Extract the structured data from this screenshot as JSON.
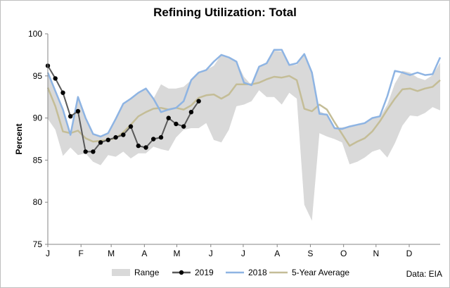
{
  "chart_data": {
    "type": "line",
    "title": "Refining Utilization: Total",
    "ylabel": "Percent",
    "xlabel": "",
    "ylim": [
      75,
      100
    ],
    "yticks": [
      75,
      80,
      85,
      90,
      95,
      100
    ],
    "x_range": [
      1,
      53
    ],
    "x_ticks": [
      {
        "label": "J",
        "week": 1
      },
      {
        "label": "F",
        "week": 5.4
      },
      {
        "label": "M",
        "week": 9.4
      },
      {
        "label": "A",
        "week": 13.8
      },
      {
        "label": "M",
        "week": 18.1
      },
      {
        "label": "J",
        "week": 22.6
      },
      {
        "label": "J",
        "week": 26.9
      },
      {
        "label": "A",
        "week": 31.4
      },
      {
        "label": "S",
        "week": 35.8
      },
      {
        "label": "O",
        "week": 40.2
      },
      {
        "label": "N",
        "week": 44.5
      },
      {
        "label": "D",
        "week": 48.9
      }
    ],
    "grid": false,
    "legend_position": "bottom",
    "range": {
      "name": "Range",
      "color": "#d9d9d9",
      "weeks": [
        1,
        2,
        3,
        4,
        5,
        6,
        7,
        8,
        9,
        10,
        11,
        12,
        13,
        14,
        15,
        16,
        17,
        18,
        19,
        20,
        21,
        22,
        23,
        24,
        25,
        26,
        27,
        28,
        29,
        30,
        31,
        32,
        33,
        34,
        35,
        36,
        37,
        38,
        39,
        40,
        41,
        42,
        43,
        44,
        45,
        46,
        47,
        48,
        49,
        50,
        51,
        52,
        53
      ],
      "lower": [
        89.9,
        88.6,
        85.5,
        86.5,
        85.6,
        85.8,
        84.8,
        84.4,
        85.6,
        85.4,
        86.0,
        85.2,
        85.8,
        85.8,
        86.6,
        86.3,
        86.1,
        87.7,
        88.6,
        88.8,
        88.8,
        89.4,
        87.4,
        87.1,
        88.6,
        91.4,
        91.6,
        92.0,
        93.3,
        92.5,
        92.5,
        91.6,
        93.0,
        92.3,
        79.7,
        77.8,
        88.2,
        87.8,
        87.5,
        87.1,
        84.5,
        84.8,
        85.3,
        86.0,
        86.3,
        85.3,
        87.0,
        89.1,
        90.3,
        90.2,
        90.6,
        91.3,
        90.9
      ],
      "upper": [
        95.4,
        93.2,
        91.0,
        88.0,
        92.5,
        90.0,
        88.1,
        87.8,
        88.2,
        89.9,
        91.7,
        92.3,
        93.0,
        93.5,
        92.3,
        94.0,
        93.5,
        93.5,
        93.7,
        94.5,
        95.4,
        95.7,
        96.2,
        97.5,
        97.2,
        96.7,
        94.9,
        93.9,
        96.1,
        96.5,
        98.0,
        97.9,
        96.3,
        96.3,
        97.6,
        95.4,
        90.8,
        90.4,
        88.8,
        88.9,
        89.0,
        89.2,
        89.4,
        90.0,
        90.1,
        91.6,
        94.1,
        95.6,
        95.4,
        94.8,
        94.5,
        95.1,
        96.6
      ]
    },
    "series": [
      {
        "name": "2019",
        "color": "#595959",
        "marker": "circle",
        "weeks": [
          1,
          2,
          3,
          4,
          5,
          6,
          7,
          8,
          9,
          10,
          11,
          12,
          13,
          14,
          15,
          16,
          17,
          18,
          19,
          20,
          21
        ],
        "values": [
          96.2,
          94.7,
          93.0,
          90.2,
          90.8,
          86.0,
          86.0,
          87.1,
          87.4,
          87.7,
          88.0,
          89.0,
          86.7,
          86.5,
          87.5,
          87.7,
          90.0,
          89.3,
          89.0,
          90.7,
          92.0
        ]
      },
      {
        "name": "2018",
        "color": "#8eb4e3",
        "marker": "none",
        "weeks": [
          1,
          2,
          3,
          4,
          5,
          6,
          7,
          8,
          9,
          10,
          11,
          12,
          13,
          14,
          15,
          16,
          17,
          18,
          19,
          20,
          21,
          22,
          23,
          24,
          25,
          26,
          27,
          28,
          29,
          30,
          31,
          32,
          33,
          34,
          35,
          36,
          37,
          38,
          39,
          40,
          41,
          42,
          43,
          44,
          45,
          46,
          47,
          48,
          49,
          50,
          51,
          52,
          53
        ],
        "values": [
          95.4,
          93.2,
          91.0,
          88.0,
          92.5,
          90.0,
          88.1,
          87.8,
          88.2,
          89.9,
          91.7,
          92.3,
          93.0,
          93.5,
          92.3,
          90.7,
          91.0,
          91.2,
          92.0,
          94.5,
          95.4,
          95.7,
          96.7,
          97.5,
          97.2,
          96.7,
          94.2,
          93.9,
          96.1,
          96.5,
          98.1,
          98.1,
          96.3,
          96.5,
          97.6,
          95.4,
          90.5,
          90.4,
          88.8,
          88.7,
          89.0,
          89.2,
          89.4,
          90.0,
          90.2,
          92.6,
          95.6,
          95.4,
          95.1,
          95.4,
          95.1,
          95.2,
          97.2
        ]
      },
      {
        "name": "5-Year Average",
        "color": "#c4bd97",
        "marker": "none",
        "weeks": [
          1,
          2,
          3,
          4,
          5,
          6,
          7,
          8,
          9,
          10,
          11,
          12,
          13,
          14,
          15,
          16,
          17,
          18,
          19,
          20,
          21,
          22,
          23,
          24,
          25,
          26,
          27,
          28,
          29,
          30,
          31,
          32,
          33,
          34,
          35,
          36,
          37,
          38,
          39,
          40,
          41,
          42,
          43,
          44,
          45,
          46,
          47,
          48,
          49,
          50,
          51,
          52,
          53
        ],
        "values": [
          93.6,
          91.4,
          88.4,
          88.2,
          88.5,
          87.6,
          87.2,
          87.3,
          87.4,
          87.6,
          88.3,
          89.2,
          90.2,
          90.7,
          91.1,
          91.2,
          91.0,
          91.2,
          91.0,
          91.5,
          92.4,
          92.7,
          92.8,
          92.3,
          92.8,
          94.0,
          94.0,
          94.0,
          94.2,
          94.6,
          94.9,
          94.8,
          95.0,
          94.5,
          91.1,
          90.8,
          91.6,
          91.0,
          89.5,
          88.1,
          86.7,
          87.2,
          87.6,
          88.4,
          89.6,
          91.0,
          92.3,
          93.4,
          93.5,
          93.2,
          93.5,
          93.7,
          94.5
        ]
      }
    ],
    "legend": [
      {
        "name": "Range",
        "kind": "band"
      },
      {
        "name": "2019",
        "kind": "marker-line"
      },
      {
        "name": "2018",
        "kind": "line"
      },
      {
        "name": "5-Year Average",
        "kind": "line"
      }
    ],
    "source_note": "Data: EIA"
  }
}
